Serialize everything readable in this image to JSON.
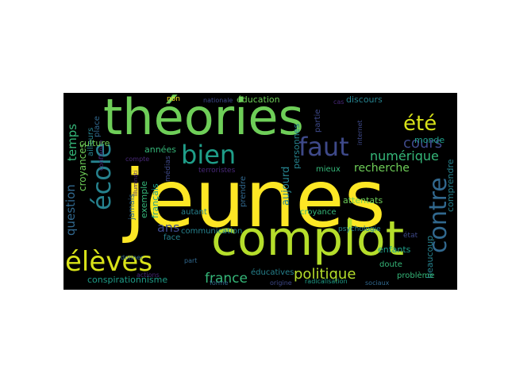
{
  "palette": {
    "background": "#000000",
    "yellow": "#fde725",
    "lime": "#b5de2b",
    "green": "#6ece58",
    "mint": "#35b779",
    "teal": "#1f9e89",
    "cyan": "#26828e",
    "blue": "#31688e",
    "indigo": "#3e4989",
    "violet": "#482878",
    "purple": "#440154"
  },
  "words": {
    "jeunes": "jeunes",
    "theories": "théories",
    "complot": "complot",
    "ecole": "école",
    "eleves": "élèves",
    "contre": "contre",
    "bien": "bien",
    "faut": "faut",
    "ete": "été",
    "cours": "cours",
    "numerique": "numérique",
    "recherche": "recherche",
    "france": "france",
    "politique": "politique",
    "temps": "temps",
    "question": "question",
    "croyances": "croyances",
    "culture": "culture",
    "annees": "années",
    "education": "éducation",
    "discours": "discours",
    "monde": "monde",
    "aujourd": "aujourd",
    "personnes": "personnes",
    "ans": "ans",
    "conspirationnisme": "conspirationnisme",
    "enfants": "enfants",
    "probleme": "problème",
    "beaucoup": "beaucoup",
    "comprendre": "comprendre",
    "educatives": "éducatives",
    "croyance": "croyance",
    "attentats": "attentats",
    "psychologie": "psychologie",
    "communication": "communication",
    "autant": "autant",
    "francais": "français",
    "exemple": "exemple",
    "jamais": "jamais",
    "place": "place",
    "ailleurs": "ailleurs",
    "face": "face",
    "non": "non",
    "mieux": "mieux",
    "etat": "état",
    "doute": "doute",
    "sociaux": "sociaux",
    "radicalisation": "radicalisation",
    "origine": "origine",
    "terroristes": "terroristes",
    "medias": "médias",
    "prendre": "prendre",
    "partie": "partie",
    "forme": "forme",
    "part": "part",
    "nationale": "nationale",
    "compte": "compte",
    "donner": "donner",
    "actions": "actions",
    "confiance": "confiance",
    "illuminati": "illuminati",
    "internet": "internet",
    "cas": "cas"
  }
}
